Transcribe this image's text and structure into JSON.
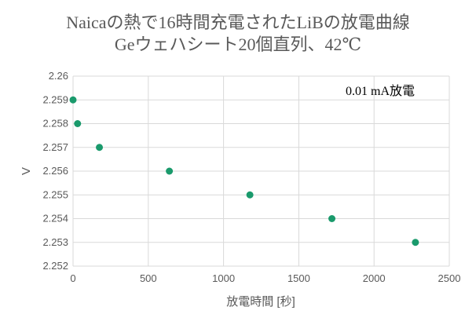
{
  "chart_data": {
    "type": "scatter",
    "title_line1": "Naicaの熱で16時間充電されたLiBの放電曲線",
    "title_line2": "Geウェハシート20個直列、42℃",
    "annotation": "0.01 mA放電",
    "xlabel": "放電時間  [秒]",
    "ylabel": "V",
    "xlim": [
      0,
      2500
    ],
    "ylim": [
      2.252,
      2.26
    ],
    "x_ticks": [
      0,
      500,
      1000,
      1500,
      2000,
      2500
    ],
    "x_tick_labels": [
      "0",
      "500",
      "1000",
      "1500",
      "2000",
      "2500"
    ],
    "y_ticks": [
      2.252,
      2.253,
      2.254,
      2.255,
      2.256,
      2.257,
      2.258,
      2.259,
      2.26
    ],
    "y_tick_labels": [
      "2.252",
      "2.253",
      "2.254",
      "2.255",
      "2.256",
      "2.257",
      "2.258",
      "2.259",
      "2.26"
    ],
    "grid": true,
    "legend": "none",
    "series": [
      {
        "color": "#1a9a6c",
        "points": [
          {
            "x": 0,
            "y": 2.259
          },
          {
            "x": 30,
            "y": 2.258
          },
          {
            "x": 175,
            "y": 2.257
          },
          {
            "x": 640,
            "y": 2.256
          },
          {
            "x": 1175,
            "y": 2.255
          },
          {
            "x": 1720,
            "y": 2.254
          },
          {
            "x": 2275,
            "y": 2.253
          }
        ]
      }
    ]
  }
}
